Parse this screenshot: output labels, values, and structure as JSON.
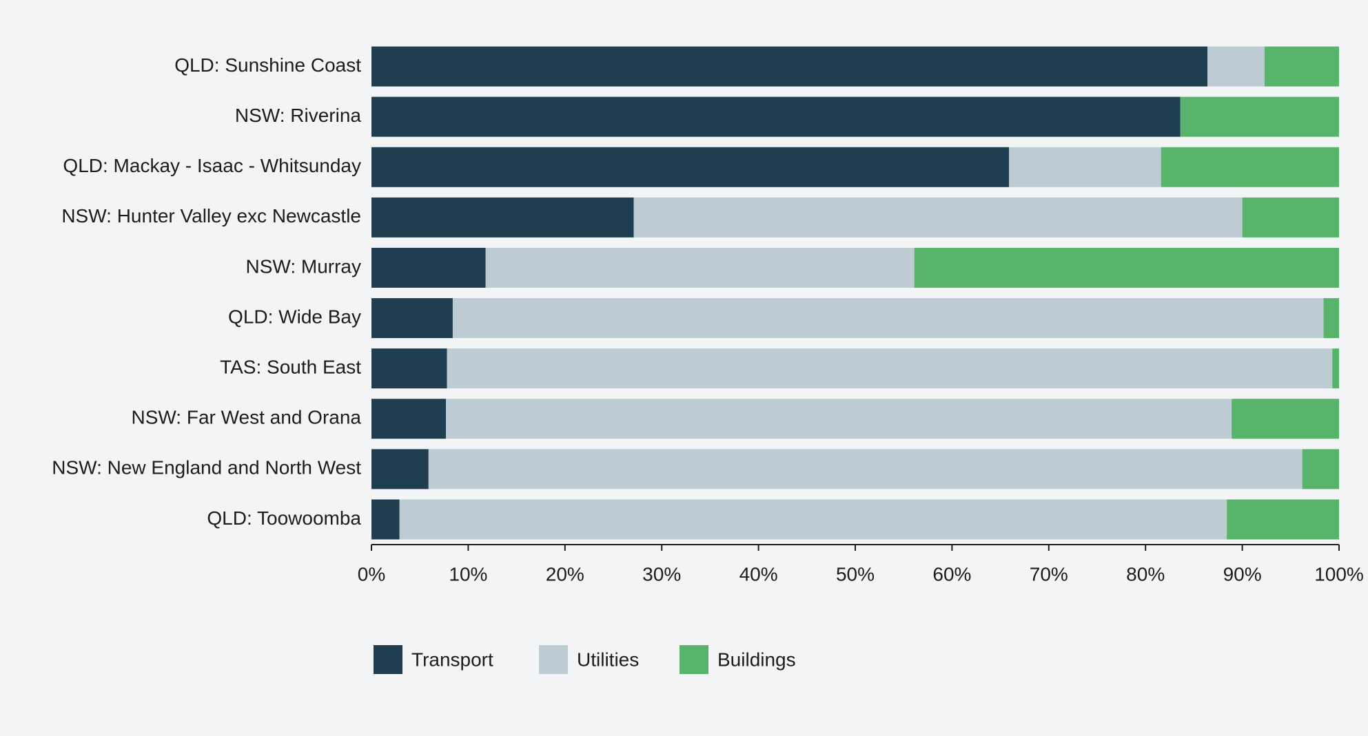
{
  "chart_data": {
    "type": "stacked-bar-horizontal",
    "categories": [
      "QLD: Sunshine Coast",
      "NSW: Riverina",
      "QLD: Mackay - Isaac - Whitsunday",
      "NSW: Hunter Valley exc Newcastle",
      "NSW: Murray",
      "QLD: Wide Bay",
      "TAS: South East",
      "NSW: Far West and Orana",
      "NSW: New England and North West",
      "QLD: Toowoomba"
    ],
    "series": [
      {
        "name": "Transport",
        "color": "#1f3f50",
        "values": [
          86.4,
          83.6,
          65.9,
          27.1,
          11.8,
          8.4,
          7.8,
          7.7,
          5.9,
          2.9
        ]
      },
      {
        "name": "Utilities",
        "color": "#bdcbd3",
        "values": [
          5.9,
          0,
          15.7,
          62.9,
          44.3,
          90.0,
          91.5,
          81.2,
          90.3,
          85.5
        ]
      },
      {
        "name": "Buildings",
        "color": "#57b46a",
        "values": [
          7.7,
          16.4,
          18.4,
          10.0,
          43.9,
          1.6,
          0.7,
          11.1,
          3.8,
          11.6
        ]
      }
    ],
    "xlim": [
      0,
      100
    ],
    "xticks": [
      {
        "value": 0,
        "label": "0%"
      },
      {
        "value": 10,
        "label": "10%"
      },
      {
        "value": 20,
        "label": "20%"
      },
      {
        "value": 30,
        "label": "30%"
      },
      {
        "value": 40,
        "label": "40%"
      },
      {
        "value": 50,
        "label": "50%"
      },
      {
        "value": 60,
        "label": "60%"
      },
      {
        "value": 70,
        "label": "70%"
      },
      {
        "value": 80,
        "label": "80%"
      },
      {
        "value": 90,
        "label": "90%"
      },
      {
        "value": 100,
        "label": "100%"
      }
    ],
    "legend": "bottom-left"
  }
}
